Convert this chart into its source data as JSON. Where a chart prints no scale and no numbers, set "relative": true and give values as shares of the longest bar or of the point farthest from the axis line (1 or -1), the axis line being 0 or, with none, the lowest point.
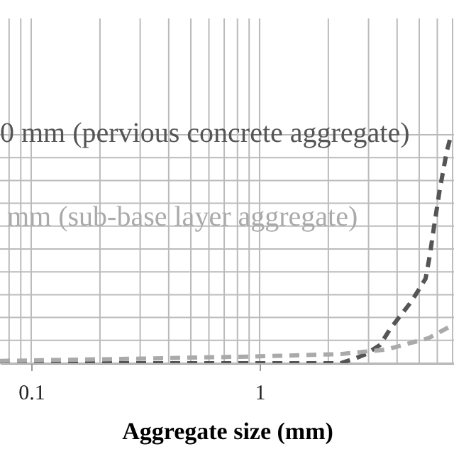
{
  "chart_data": {
    "type": "line",
    "xlabel": "Aggregate size (mm)",
    "relative": true,
    "log": "x",
    "grid": true,
    "legend": "left",
    "marker": "none",
    "xlim": [
      0.073,
      7.1
    ],
    "xticks": [
      0.1,
      1
    ],
    "series": [
      {
        "name": "0 mm (pervious concrete aggregate)",
        "color": "#555555",
        "line_style": "dashed",
        "x": [
          0.073,
          0.305,
          1,
          2.26,
          2.61,
          2.92,
          3.37,
          3.73,
          4.62,
          5.33,
          5.56,
          5.81,
          6.15,
          6.61,
          6.9
        ],
        "values": [
          0,
          0,
          0,
          0,
          0.02,
          0.04,
          0.08,
          0.15,
          0.27,
          0.37,
          0.47,
          0.6,
          0.76,
          0.93,
          1
        ]
      },
      {
        "name": "mm (sub-base layer aggregate)",
        "color": "#aaaaaa",
        "line_style": "dashed",
        "x": [
          0.073,
          0.305,
          1,
          2.26,
          3.6,
          5.5,
          7.1
        ],
        "values": [
          0.01,
          0.02,
          0.03,
          0.04,
          0.06,
          0.11,
          0.17
        ]
      }
    ]
  }
}
